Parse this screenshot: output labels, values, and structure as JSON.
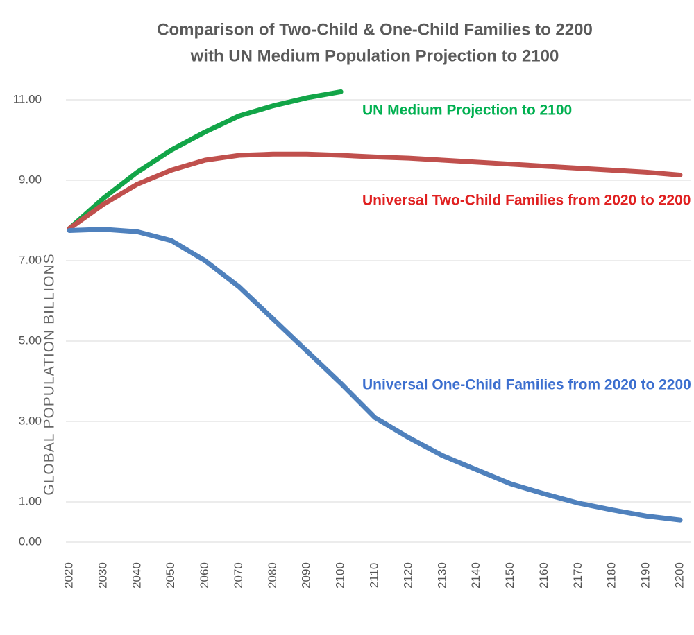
{
  "chart_data": {
    "type": "line",
    "title": "Comparison of Two-Child & One-Child Families to 2200",
    "subtitle": "with UN Medium Population Projection to 2100",
    "y_label": "GLOBAL POPULATION  BILLIONS",
    "x": [
      2020,
      2030,
      2040,
      2050,
      2060,
      2070,
      2080,
      2090,
      2100,
      2110,
      2120,
      2130,
      2140,
      2150,
      2160,
      2170,
      2180,
      2190,
      2200
    ],
    "xlim": [
      2020,
      2200
    ],
    "xticks": [
      2020,
      2030,
      2040,
      2050,
      2060,
      2070,
      2080,
      2090,
      2100,
      2110,
      2120,
      2130,
      2140,
      2150,
      2160,
      2170,
      2180,
      2190,
      2200
    ],
    "ylim": [
      0,
      12
    ],
    "yticks": [
      {
        "value": 0,
        "label": "0.00"
      },
      {
        "value": 1,
        "label": "1.00"
      },
      {
        "value": 3,
        "label": "3.00"
      },
      {
        "value": 5,
        "label": "5.00"
      },
      {
        "value": 7,
        "label": "7.00"
      },
      {
        "value": 9,
        "label": "9.00"
      },
      {
        "value": 11,
        "label": "11.00"
      }
    ],
    "grid": true,
    "series": [
      {
        "name": "UN Medium Projection to 2100",
        "color": "#12a548",
        "label_color": "#00b050",
        "values": [
          7.8,
          8.55,
          9.2,
          9.75,
          10.2,
          10.6,
          10.85,
          11.05,
          11.2,
          null,
          null,
          null,
          null,
          null,
          null,
          null,
          null,
          null,
          null
        ]
      },
      {
        "name": "Universal Two-Child Families from 2020 to 2200",
        "color": "#c0504d",
        "label_color": "#e02020",
        "values": [
          7.8,
          8.4,
          8.9,
          9.25,
          9.5,
          9.62,
          9.65,
          9.65,
          9.62,
          9.58,
          9.55,
          9.5,
          9.45,
          9.4,
          9.35,
          9.3,
          9.25,
          9.2,
          9.13
        ]
      },
      {
        "name": "Universal One-Child Families from 2020 to 2200",
        "color": "#4f81bd",
        "label_color": "#3c6fcf",
        "values": [
          7.75,
          7.78,
          7.72,
          7.5,
          7.0,
          6.35,
          5.55,
          4.75,
          3.95,
          3.1,
          2.6,
          2.15,
          1.8,
          1.45,
          1.2,
          0.97,
          0.8,
          0.65,
          0.55
        ]
      }
    ]
  }
}
